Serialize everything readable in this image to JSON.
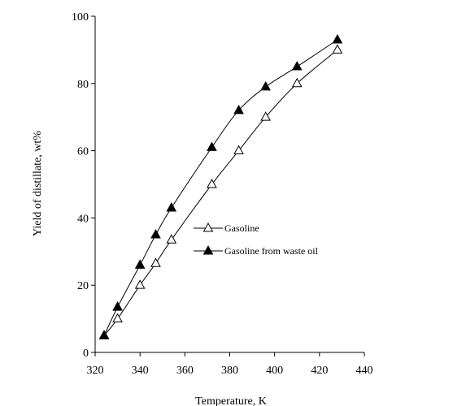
{
  "chart_data": {
    "type": "line",
    "title": "",
    "xlabel": "Temperature, K",
    "ylabel": "Yield of distillate, wt%",
    "xlim": [
      320,
      440
    ],
    "ylim": [
      0,
      100
    ],
    "xticks": [
      320,
      340,
      360,
      380,
      400,
      420,
      440
    ],
    "yticks": [
      0,
      20,
      40,
      60,
      80,
      100
    ],
    "grid": false,
    "legend_position": "center-right",
    "series": [
      {
        "name": "Gasoline",
        "marker": "open-triangle",
        "color": "#000000",
        "x": [
          324,
          330,
          340,
          347,
          354,
          372,
          384,
          396,
          410,
          428
        ],
        "y": [
          5,
          10,
          20,
          26.5,
          33.5,
          50,
          60,
          70,
          80,
          90
        ]
      },
      {
        "name": "Gasoline from waste oil",
        "marker": "filled-triangle",
        "color": "#000000",
        "x": [
          324,
          330,
          340,
          347,
          354,
          372,
          384,
          396,
          410,
          428
        ],
        "y": [
          5,
          13.5,
          26,
          35,
          43,
          61,
          72,
          79,
          85,
          93
        ]
      }
    ]
  }
}
